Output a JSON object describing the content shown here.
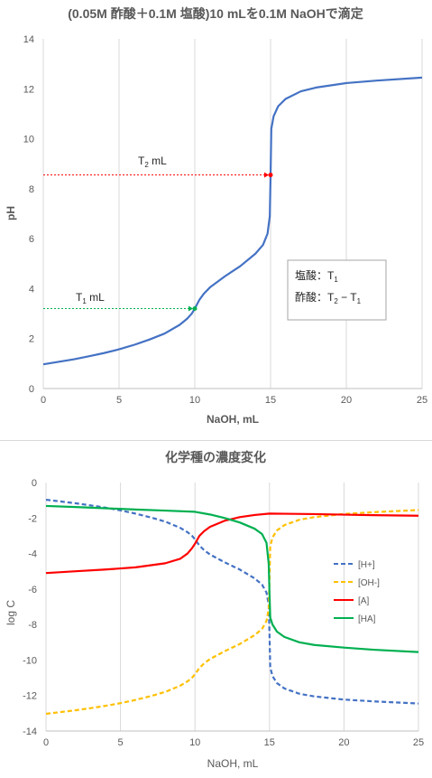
{
  "chart_data": [
    {
      "type": "line",
      "title": "(0.05M 酢酸＋0.1M 塩酸)10 mLを0.1M NaOHで滴定",
      "xlabel": "NaOH, mL",
      "ylabel": "pH",
      "xlim": [
        0,
        25
      ],
      "ylim": [
        0,
        14
      ],
      "xticks": [
        "0",
        "5",
        "10",
        "15",
        "20",
        "25"
      ],
      "yticks": [
        "0",
        "2",
        "4",
        "6",
        "8",
        "10",
        "12",
        "14"
      ],
      "grid": "vertical",
      "series": [
        {
          "color": "#4472c4",
          "x": [
            0,
            1,
            2,
            3,
            4,
            5,
            6,
            7,
            8,
            9,
            9.5,
            9.8,
            10,
            10.3,
            10.6,
            11,
            12,
            13,
            14,
            14.5,
            14.8,
            14.95,
            15,
            15.05,
            15.2,
            15.5,
            16,
            17,
            18,
            20,
            22,
            25
          ],
          "y": [
            0.97,
            1.07,
            1.17,
            1.29,
            1.42,
            1.57,
            1.75,
            1.96,
            2.2,
            2.55,
            2.8,
            3.0,
            3.2,
            3.55,
            3.8,
            4.05,
            4.5,
            4.9,
            5.4,
            5.75,
            6.2,
            6.9,
            8.5,
            10.4,
            10.9,
            11.3,
            11.6,
            11.9,
            12.05,
            12.23,
            12.33,
            12.45
          ]
        }
      ],
      "annotations": {
        "t2_label": "T",
        "t2_sub": "2",
        "t2_unit": " mL",
        "t1_label": "T",
        "t1_sub": "1",
        "t1_unit": " mL",
        "t1_point": {
          "x": 10,
          "y": 3.2
        },
        "t2_point": {
          "x": 15,
          "y": 8.55
        },
        "box_line1_prefix": "塩酸：T",
        "box_line1_sub": "1",
        "box_line2_prefix": "酢酸：T",
        "box_line2_sub1": "2",
        "box_line2_mid": " − T",
        "box_line2_sub2": "1",
        "t1_color": "#00b050",
        "t2_color": "#ff0000"
      }
    },
    {
      "type": "line",
      "title": "化学種の濃度変化",
      "xlabel": "NaOH, mL",
      "ylabel": "log C",
      "xlim": [
        0,
        25
      ],
      "ylim": [
        -14,
        0
      ],
      "xticks": [
        "0",
        "5",
        "10",
        "15",
        "20",
        "25"
      ],
      "yticks": [
        "0",
        "-2",
        "-4",
        "-6",
        "-8",
        "-10",
        "-12",
        "-14"
      ],
      "grid": "vertical",
      "legend": "right",
      "series": [
        {
          "name": "[H+]",
          "color": "#4472c4",
          "dash": true,
          "x": [
            0,
            1,
            2,
            3,
            4,
            5,
            6,
            7,
            8,
            9,
            9.5,
            9.8,
            10,
            10.3,
            10.6,
            11,
            12,
            13,
            14,
            14.5,
            14.8,
            14.95,
            15,
            15.05,
            15.2,
            15.5,
            16,
            17,
            18,
            20,
            22,
            25
          ],
          "y": [
            -0.97,
            -1.07,
            -1.17,
            -1.29,
            -1.42,
            -1.57,
            -1.75,
            -1.96,
            -2.2,
            -2.55,
            -2.8,
            -3.0,
            -3.2,
            -3.55,
            -3.8,
            -4.05,
            -4.5,
            -4.9,
            -5.4,
            -5.75,
            -6.2,
            -6.9,
            -8.5,
            -10.4,
            -10.9,
            -11.3,
            -11.6,
            -11.9,
            -12.05,
            -12.23,
            -12.33,
            -12.45
          ]
        },
        {
          "name": "[OH-]",
          "color": "#ffc000",
          "dash": true,
          "x": [
            0,
            1,
            2,
            3,
            4,
            5,
            6,
            7,
            8,
            9,
            9.5,
            9.8,
            10,
            10.3,
            10.6,
            11,
            12,
            13,
            14,
            14.5,
            14.8,
            14.95,
            15,
            15.05,
            15.2,
            15.5,
            16,
            17,
            18,
            20,
            22,
            25
          ],
          "y": [
            -13.03,
            -12.93,
            -12.83,
            -12.71,
            -12.58,
            -12.43,
            -12.25,
            -12.04,
            -11.8,
            -11.45,
            -11.2,
            -11.0,
            -10.8,
            -10.45,
            -10.2,
            -9.95,
            -9.5,
            -9.1,
            -8.6,
            -8.25,
            -7.8,
            -7.1,
            -5.5,
            -3.6,
            -3.1,
            -2.7,
            -2.4,
            -2.1,
            -1.95,
            -1.77,
            -1.67,
            -1.55
          ]
        },
        {
          "name": "[A]",
          "color": "#ff0000",
          "dash": false,
          "x": [
            0,
            2,
            4,
            6,
            8,
            9,
            9.5,
            9.8,
            10,
            10.3,
            10.6,
            11,
            12,
            13,
            14,
            15,
            16,
            18,
            20,
            22,
            25
          ],
          "y": [
            -5.1,
            -5.0,
            -4.9,
            -4.78,
            -4.55,
            -4.3,
            -4.0,
            -3.7,
            -3.45,
            -3.0,
            -2.75,
            -2.5,
            -2.15,
            -1.95,
            -1.83,
            -1.75,
            -1.76,
            -1.78,
            -1.81,
            -1.84,
            -1.87
          ]
        },
        {
          "name": "[HA]",
          "color": "#00b050",
          "dash": false,
          "x": [
            0,
            2,
            4,
            6,
            8,
            10,
            11,
            12,
            13,
            14,
            14.5,
            14.8,
            14.95,
            15,
            15.05,
            15.2,
            15.5,
            16,
            17,
            18,
            20,
            22,
            25
          ],
          "y": [
            -1.32,
            -1.38,
            -1.45,
            -1.52,
            -1.58,
            -1.65,
            -1.8,
            -2.0,
            -2.25,
            -2.6,
            -2.9,
            -3.4,
            -4.6,
            -6.2,
            -7.6,
            -8.0,
            -8.4,
            -8.7,
            -9.0,
            -9.15,
            -9.3,
            -9.42,
            -9.55
          ]
        }
      ]
    }
  ]
}
